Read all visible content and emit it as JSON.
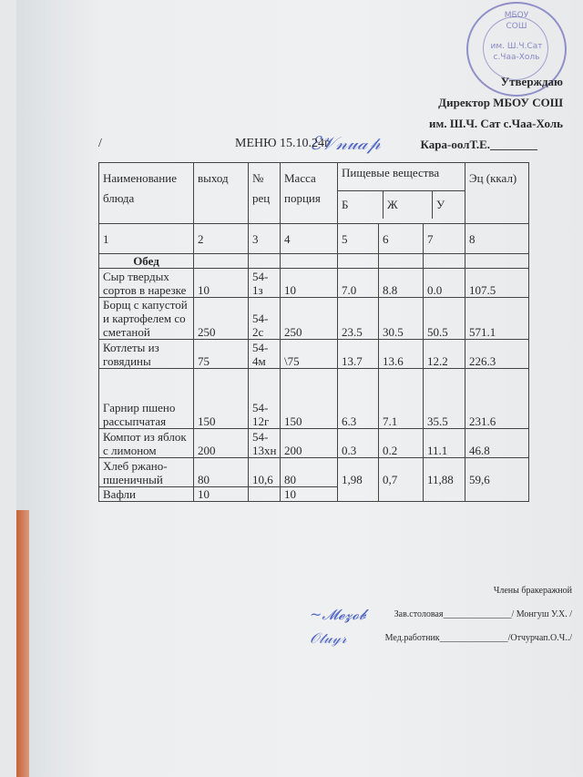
{
  "approval": {
    "line1": "Утверждаю",
    "line2": "Директор МБОУ СОШ",
    "line3": "им. Ш.Ч. Сат с.Чаа-Холь",
    "line4": "Кара-оолТ.Е.",
    "stamp_text": [
      "МБОУ",
      "СОШ",
      "им. Ш.Ч.Сат",
      "с.Чаа-Холь"
    ]
  },
  "title": {
    "slash": "/",
    "text": "МЕНЮ  15.10.24г"
  },
  "table": {
    "headers": {
      "name": "Наименование блюда",
      "output": "выход",
      "recipe": "№ рец",
      "mass": "Масса порция",
      "nutrients": "Пищевые вещества",
      "b": "Б",
      "zh": "Ж",
      "u": "У",
      "energy": "Эц (ккал)"
    },
    "column_numbers": [
      "1",
      "2",
      "3",
      "4",
      "5",
      "6",
      "7",
      "8"
    ],
    "section": "Обед",
    "rows": [
      {
        "name": "Сыр твердых сортов в нарезке",
        "output": "10",
        "recipe": "54-1з",
        "mass": "10",
        "b": "7.0",
        "zh": "8.8",
        "u": "0.0",
        "kcal": "107.5"
      },
      {
        "name": "Борщ с капустой и картофелем со сметаной",
        "output": "250",
        "recipe": "54-2с",
        "mass": "250",
        "b": "23.5",
        "zh": "30.5",
        "u": "50.5",
        "kcal": "571.1"
      },
      {
        "name": "Котлеты из говядины",
        "output": "75",
        "recipe": "54-4м",
        "mass": "\\75",
        "b": "13.7",
        "zh": "13.6",
        "u": "12.2",
        "kcal": "226.3"
      },
      {
        "name": "Гарнир пшено рассыпчатая",
        "output": "150",
        "recipe": "54-12г",
        "mass": "150",
        "b": "6.3",
        "zh": "7.1",
        "u": "35.5",
        "kcal": "231.6"
      },
      {
        "name": "Компот  из яблок с лимоном",
        "output": "200",
        "recipe": "54-13хн",
        "mass": "200",
        "b": "0.3",
        "zh": "0.2",
        "u": "11.1",
        "kcal": "46.8"
      },
      {
        "name": "Хлеб ржано-пшеничный",
        "output": "80",
        "recipe": "10,6",
        "mass": "80",
        "b": "1,98",
        "zh": "0,7",
        "u": "11,88",
        "kcal": "59,6"
      },
      {
        "name": "Вафли",
        "output": "10",
        "recipe": "",
        "mass": "10"
      }
    ]
  },
  "commission": {
    "title": "Члены бракеражной",
    "line1_role": "Зав.столовая",
    "line1_name": "/ Монгуш У.Х. /",
    "line2_role": "Мед.работник",
    "line2_name": "/Отчурчап.О.Ч../"
  }
}
